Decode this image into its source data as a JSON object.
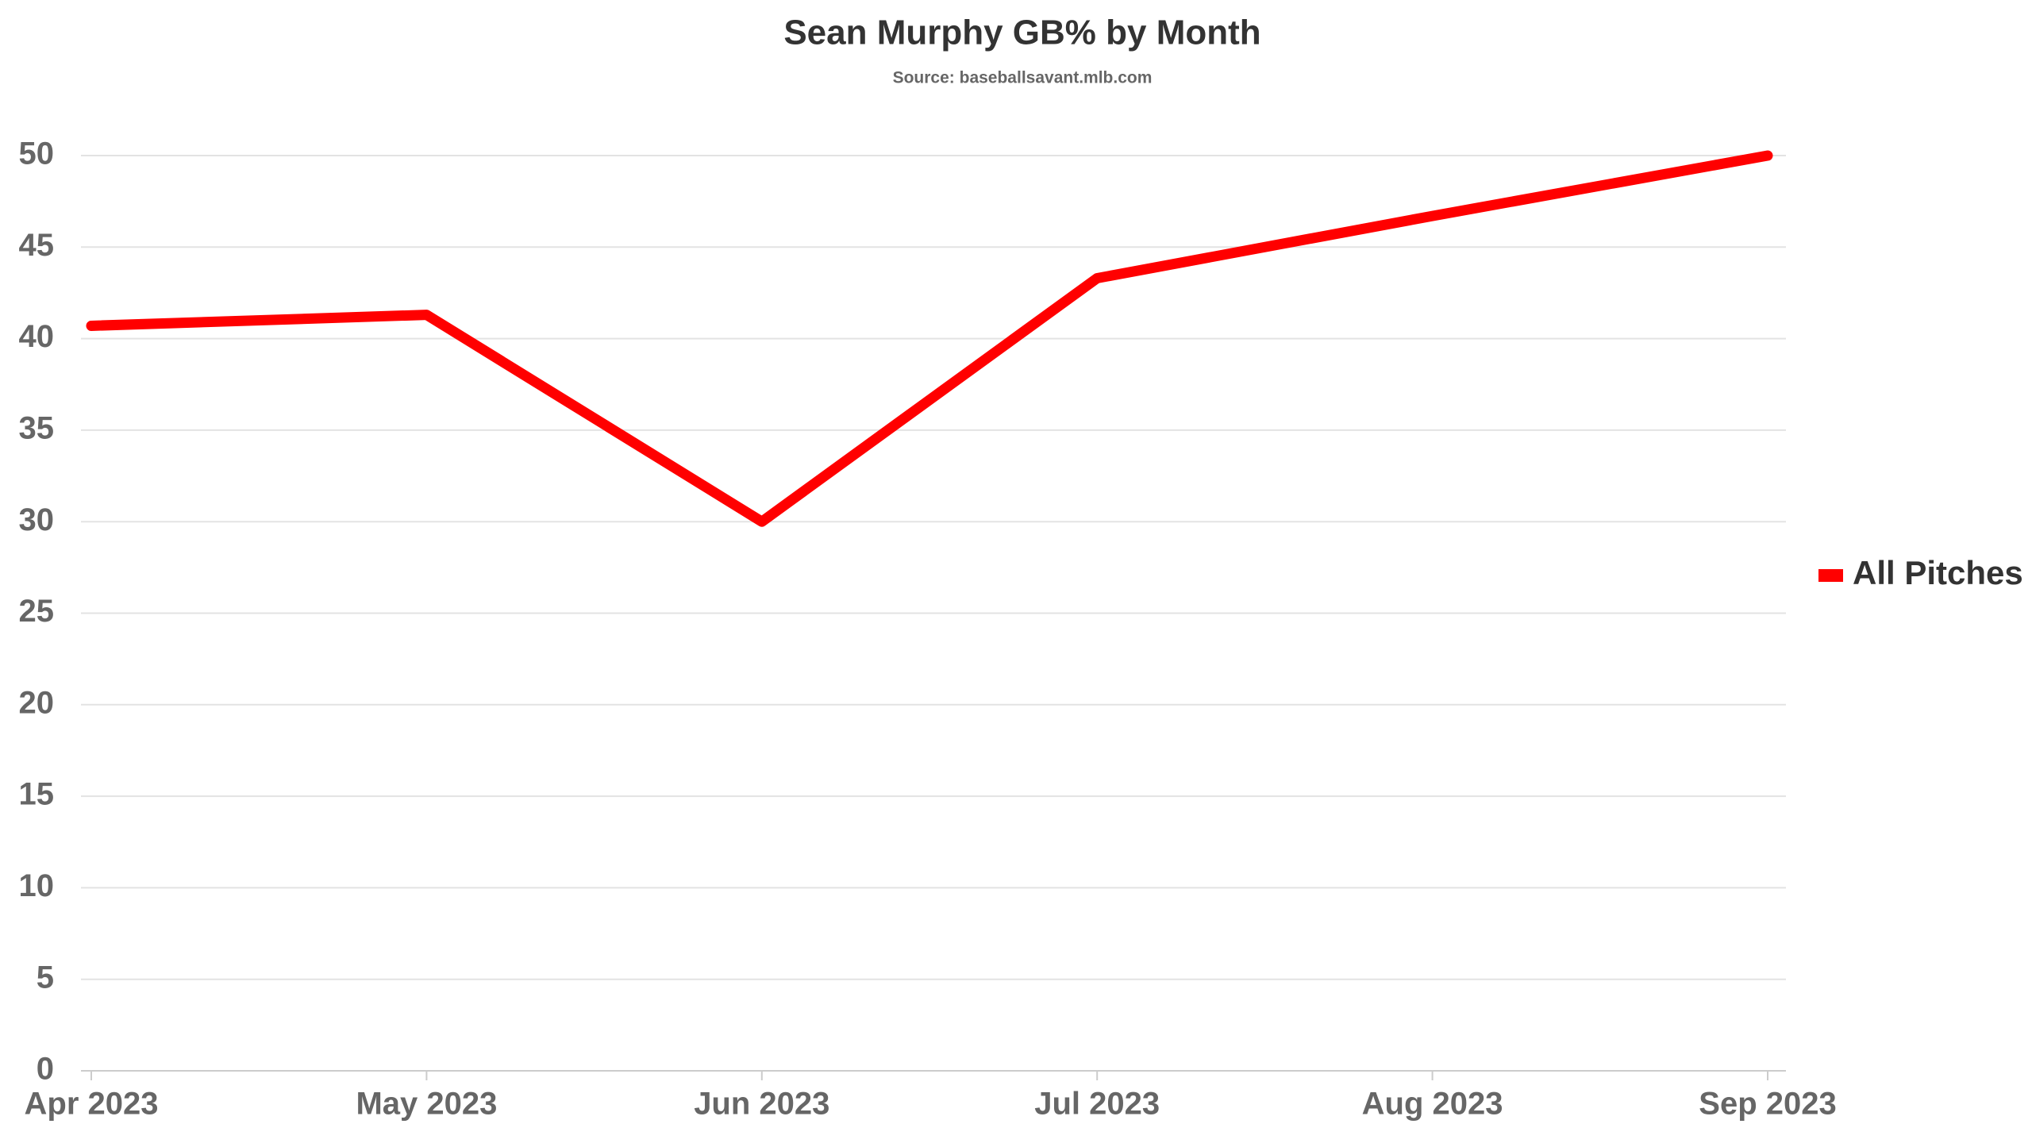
{
  "chart_data": {
    "type": "line",
    "title": "Sean Murphy GB% by Month",
    "subtitle": "Source: baseballsavant.mlb.com",
    "categories": [
      "Apr 2023",
      "May 2023",
      "Jun 2023",
      "Jul 2023",
      "Aug 2023",
      "Sep 2023"
    ],
    "series": [
      {
        "name": "All Pitches",
        "color": "#ff0000",
        "values": [
          40.7,
          41.3,
          30.0,
          43.3,
          46.7,
          50.0
        ]
      }
    ],
    "ylim": [
      0,
      50
    ],
    "yticks": [
      0,
      5,
      10,
      15,
      20,
      25,
      30,
      35,
      40,
      45,
      50
    ],
    "grid": true,
    "legend": "right"
  }
}
